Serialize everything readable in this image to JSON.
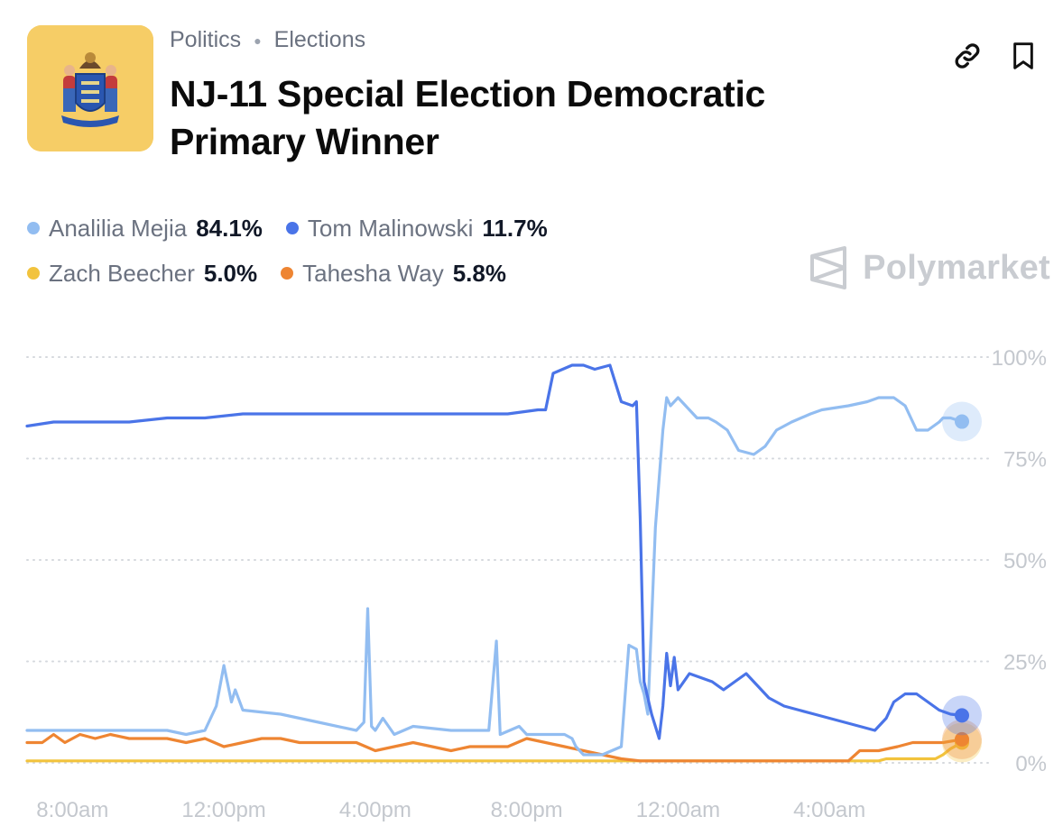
{
  "header": {
    "breadcrumbs": [
      "Politics",
      "Elections"
    ],
    "title": "NJ-11 Special Election Democratic Primary Winner",
    "brand": "Polymarket"
  },
  "icons": {
    "link": "link-icon",
    "bookmark": "bookmark-icon",
    "logo": "new-jersey-flag-icon",
    "brand": "polymarket-logo-icon"
  },
  "legend": [
    {
      "name": "Analilia Mejia",
      "value": "84.1%",
      "color": "#92bdf1"
    },
    {
      "name": "Tom Malinowski",
      "value": "11.7%",
      "color": "#4a74e8"
    },
    {
      "name": "Zach Beecher",
      "value": "5.0%",
      "color": "#f2c33d"
    },
    {
      "name": "Tahesha Way",
      "value": "5.8%",
      "color": "#ee8532"
    }
  ],
  "chart_data": {
    "type": "line",
    "x_tick_labels": [
      "8:00am",
      "12:00pm",
      "4:00pm",
      "8:00pm",
      "12:00am",
      "4:00am"
    ],
    "x_tick_hours": [
      8,
      12,
      16,
      20,
      24,
      28
    ],
    "y_tick_labels": [
      "100%",
      "75%",
      "50%",
      "25%",
      "0%"
    ],
    "y_tick_values": [
      100,
      75,
      50,
      25,
      0
    ],
    "xlim": [
      6.8,
      30.5
    ],
    "ylim": [
      0,
      100
    ],
    "grid": true,
    "y_axis_side": "right",
    "series": [
      {
        "name": "Analilia Mejia",
        "color": "#92bdf1",
        "points": [
          [
            6.8,
            8
          ],
          [
            7.5,
            8
          ],
          [
            8.5,
            8
          ],
          [
            9.5,
            8
          ],
          [
            10.5,
            8
          ],
          [
            11,
            7
          ],
          [
            11.5,
            8
          ],
          [
            11.8,
            14
          ],
          [
            12,
            24
          ],
          [
            12.2,
            15
          ],
          [
            12.3,
            18
          ],
          [
            12.5,
            13
          ],
          [
            13.5,
            12
          ],
          [
            14.5,
            10
          ],
          [
            15.5,
            8
          ],
          [
            15.7,
            10
          ],
          [
            15.8,
            38
          ],
          [
            15.9,
            9
          ],
          [
            16,
            8
          ],
          [
            16.2,
            11
          ],
          [
            16.5,
            7
          ],
          [
            17,
            9
          ],
          [
            18,
            8
          ],
          [
            19,
            8
          ],
          [
            19.2,
            30
          ],
          [
            19.3,
            7
          ],
          [
            19.8,
            9
          ],
          [
            20,
            7
          ],
          [
            21,
            7
          ],
          [
            21.2,
            6
          ],
          [
            21.3,
            4
          ],
          [
            21.5,
            2
          ],
          [
            22,
            2
          ],
          [
            22.5,
            4
          ],
          [
            22.7,
            29
          ],
          [
            22.9,
            28
          ],
          [
            23,
            20
          ],
          [
            23.1,
            17
          ],
          [
            23.2,
            12
          ],
          [
            23.4,
            58
          ],
          [
            23.6,
            82
          ],
          [
            23.7,
            90
          ],
          [
            23.8,
            88
          ],
          [
            23.9,
            89
          ],
          [
            24,
            90
          ],
          [
            24.2,
            88
          ],
          [
            24.5,
            85
          ],
          [
            24.8,
            85
          ],
          [
            25,
            84
          ],
          [
            25.3,
            82
          ],
          [
            25.6,
            77
          ],
          [
            26,
            76
          ],
          [
            26.3,
            78
          ],
          [
            26.6,
            82
          ],
          [
            27,
            84
          ],
          [
            27.5,
            86
          ],
          [
            27.8,
            87
          ],
          [
            28.5,
            88
          ],
          [
            29,
            89
          ],
          [
            29.3,
            90
          ],
          [
            29.7,
            90
          ],
          [
            30,
            88
          ],
          [
            30.3,
            82
          ],
          [
            30.6,
            82
          ],
          [
            30.9,
            84
          ],
          [
            31,
            85
          ],
          [
            31.2,
            85
          ],
          [
            31.5,
            84.1
          ]
        ]
      },
      {
        "name": "Tom Malinowski",
        "color": "#4a74e8",
        "points": [
          [
            6.8,
            83
          ],
          [
            7.5,
            84
          ],
          [
            8.5,
            84
          ],
          [
            9.5,
            84
          ],
          [
            10.5,
            85
          ],
          [
            11.5,
            85
          ],
          [
            12.5,
            86
          ],
          [
            13.5,
            86
          ],
          [
            14.5,
            86
          ],
          [
            15.5,
            86
          ],
          [
            16.5,
            86
          ],
          [
            17.5,
            86
          ],
          [
            18.5,
            86
          ],
          [
            19.5,
            86
          ],
          [
            20.3,
            87
          ],
          [
            20.5,
            87
          ],
          [
            20.7,
            96
          ],
          [
            21.2,
            98
          ],
          [
            21.5,
            98
          ],
          [
            21.8,
            97
          ],
          [
            22.2,
            98
          ],
          [
            22.5,
            89
          ],
          [
            22.8,
            88
          ],
          [
            22.9,
            89
          ],
          [
            23,
            60
          ],
          [
            23.1,
            20
          ],
          [
            23.3,
            12
          ],
          [
            23.5,
            6
          ],
          [
            23.6,
            14
          ],
          [
            23.7,
            27
          ],
          [
            23.8,
            19
          ],
          [
            23.9,
            26
          ],
          [
            24,
            18
          ],
          [
            24.3,
            22
          ],
          [
            24.6,
            21
          ],
          [
            24.9,
            20
          ],
          [
            25.2,
            18
          ],
          [
            25.5,
            20
          ],
          [
            25.8,
            22
          ],
          [
            26,
            20
          ],
          [
            26.2,
            18
          ],
          [
            26.4,
            16
          ],
          [
            26.8,
            14
          ],
          [
            27.2,
            13
          ],
          [
            27.6,
            12
          ],
          [
            28,
            11
          ],
          [
            28.4,
            10
          ],
          [
            28.8,
            9
          ],
          [
            29.2,
            8
          ],
          [
            29.5,
            11
          ],
          [
            29.7,
            15
          ],
          [
            30,
            17
          ],
          [
            30.3,
            17
          ],
          [
            30.6,
            15
          ],
          [
            30.9,
            13
          ],
          [
            31.2,
            12
          ],
          [
            31.5,
            11.7
          ]
        ]
      },
      {
        "name": "Zach Beecher",
        "color": "#f2c33d",
        "points": [
          [
            6.8,
            0.5
          ],
          [
            10,
            0.5
          ],
          [
            14,
            0.5
          ],
          [
            18,
            0.5
          ],
          [
            20,
            0.5
          ],
          [
            22,
            0.5
          ],
          [
            24,
            0.5
          ],
          [
            26,
            0.5
          ],
          [
            28,
            0.5
          ],
          [
            29.3,
            0.5
          ],
          [
            29.5,
            1
          ],
          [
            30,
            1
          ],
          [
            30.8,
            1
          ],
          [
            31,
            2
          ],
          [
            31.2,
            3.5
          ],
          [
            31.5,
            5
          ]
        ]
      },
      {
        "name": "Tahesha Way",
        "color": "#ee8532",
        "points": [
          [
            6.8,
            5
          ],
          [
            7.2,
            5
          ],
          [
            7.5,
            7
          ],
          [
            7.8,
            5
          ],
          [
            8.2,
            7
          ],
          [
            8.6,
            6
          ],
          [
            9,
            7
          ],
          [
            9.5,
            6
          ],
          [
            10,
            6
          ],
          [
            10.5,
            6
          ],
          [
            11,
            5
          ],
          [
            11.5,
            6
          ],
          [
            12,
            4
          ],
          [
            12.5,
            5
          ],
          [
            13,
            6
          ],
          [
            13.5,
            6
          ],
          [
            14,
            5
          ],
          [
            14.5,
            5
          ],
          [
            15,
            5
          ],
          [
            15.5,
            5
          ],
          [
            16,
            3
          ],
          [
            16.5,
            4
          ],
          [
            17,
            5
          ],
          [
            17.5,
            4
          ],
          [
            18,
            3
          ],
          [
            18.5,
            4
          ],
          [
            19,
            4
          ],
          [
            19.5,
            4
          ],
          [
            20,
            6
          ],
          [
            20.5,
            5
          ],
          [
            21,
            4
          ],
          [
            21.5,
            3
          ],
          [
            22,
            2
          ],
          [
            22.5,
            1
          ],
          [
            23,
            0.5
          ],
          [
            24,
            0.5
          ],
          [
            25,
            0.5
          ],
          [
            26,
            0.5
          ],
          [
            27,
            0.5
          ],
          [
            28,
            0.5
          ],
          [
            28.5,
            0.5
          ],
          [
            28.8,
            3
          ],
          [
            29.3,
            3
          ],
          [
            29.8,
            4
          ],
          [
            30.2,
            5
          ],
          [
            30.6,
            5
          ],
          [
            31,
            5
          ],
          [
            31.5,
            5.8
          ]
        ]
      }
    ]
  }
}
